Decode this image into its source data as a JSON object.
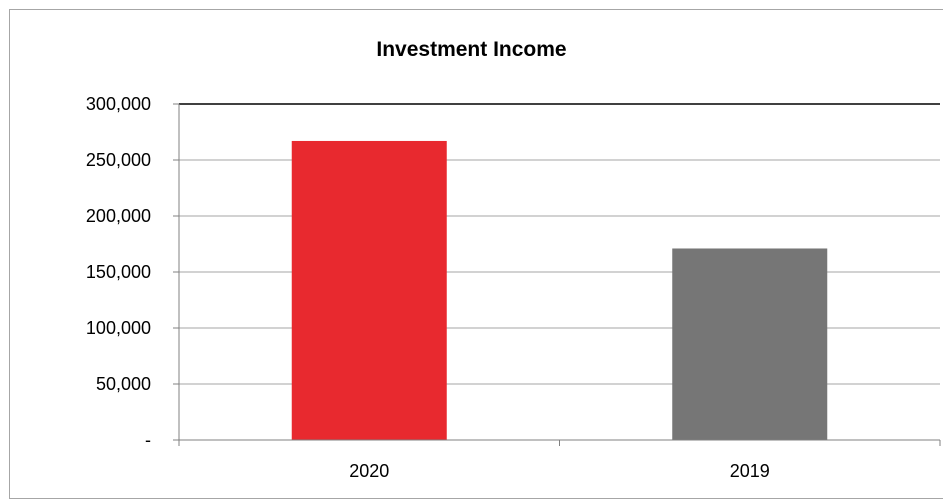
{
  "chart_data": {
    "type": "bar",
    "title": "Investment Income",
    "categories": [
      "2020",
      "2019"
    ],
    "values": [
      267000,
      171000
    ],
    "colors": [
      "#e8292f",
      "#767676"
    ],
    "ylim": [
      0,
      300000
    ],
    "ytick_values": [
      0,
      50000,
      100000,
      150000,
      200000,
      250000,
      300000
    ],
    "ytick_labels": [
      "-",
      "50,000",
      "100,000",
      "150,000",
      "200,000",
      "250,000",
      "300,000"
    ],
    "grid": true,
    "legend": "none",
    "xlabel": "",
    "ylabel": ""
  }
}
